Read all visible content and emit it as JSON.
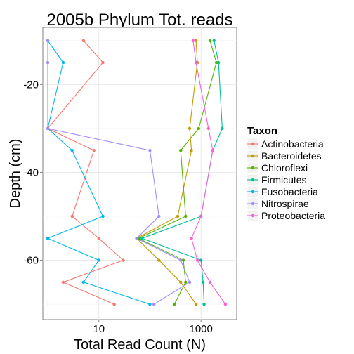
{
  "chart_data": {
    "type": "line",
    "title": "2005b Phylum Tot. reads",
    "xlabel": "Total Read Count (N)",
    "ylabel": "Depth (cm)",
    "x_scale": "log10",
    "xlim": [
      0.8,
      5000
    ],
    "ylim": [
      -73.5,
      -7.0
    ],
    "x_ticks": [
      {
        "value": 10,
        "label": "10"
      },
      {
        "value": 1000,
        "label": "1000"
      }
    ],
    "y_ticks": [
      {
        "value": -20,
        "label": "-20"
      },
      {
        "value": -40,
        "label": "-40"
      },
      {
        "value": -60,
        "label": "-60"
      }
    ],
    "grid": true,
    "legend": {
      "title": "Taxon",
      "position": "right"
    },
    "depths": [
      -10,
      -15,
      -30,
      -35,
      -50,
      -55,
      -60,
      -65,
      -70
    ],
    "series": [
      {
        "name": "Actinobacteria",
        "color": "#F8766D",
        "x": [
          5,
          12,
          1,
          8,
          3,
          10,
          30,
          2,
          20
        ]
      },
      {
        "name": "Bacteroidetes",
        "color": "#C49A00",
        "x": [
          800,
          850,
          600,
          650,
          350,
          55,
          150,
          400,
          800
        ]
      },
      {
        "name": "Chloroflexi",
        "color": "#53B400",
        "x": [
          1500,
          2000,
          900,
          400,
          500,
          60,
          450,
          500,
          300
        ]
      },
      {
        "name": "Firmicutes",
        "color": "#00C094",
        "x": [
          1800,
          2200,
          2600,
          1700,
          1000,
          70,
          1000,
          1100,
          1150
        ]
      },
      {
        "name": "Fusobacteria",
        "color": "#00B6EB",
        "x": [
          1,
          2,
          1,
          3,
          12,
          1,
          10,
          5,
          100
        ]
      },
      {
        "name": "Nitrospirae",
        "color": "#A58AFF",
        "x": [
          1,
          1,
          1,
          100,
          150,
          55,
          400,
          600,
          120
        ]
      },
      {
        "name": "Proteobacteria",
        "color": "#FB61D7",
        "x": [
          700,
          800,
          1400,
          1700,
          1000,
          650,
          850,
          1500,
          3000
        ]
      }
    ]
  }
}
